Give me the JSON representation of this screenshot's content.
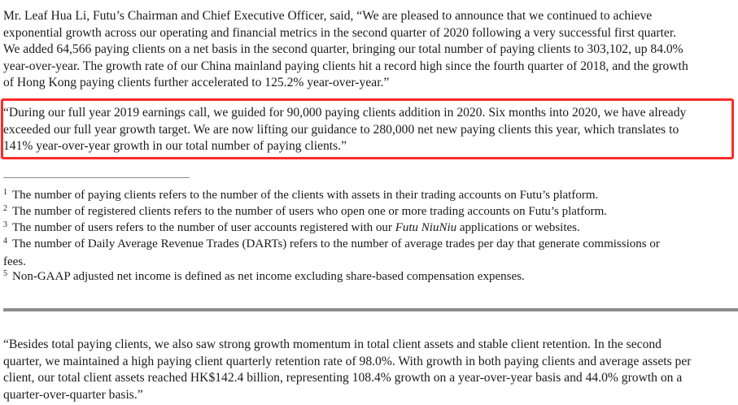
{
  "paragraph_1": {
    "lines": [
      "Mr. Leaf Hua Li, Futu’s Chairman and Chief Executive Officer, said, “We are pleased to announce that we continued to achieve",
      "exponential growth across our operating and financial metrics in the second quarter of 2020 following a very successful first quarter.",
      "We added 64,566 paying clients on a net basis in the second quarter, bringing our total number of paying clients to 303,102, up 84.0%",
      "year-over-year. The growth rate of our China mainland paying clients hit a record high since the fourth quarter of 2018, and the growth",
      "of Hong Kong paying clients further accelerated to 125.2% year-over-year.”"
    ]
  },
  "paragraph_2_highlighted": {
    "lines": [
      "“During our full year 2019 earnings call, we guided for 90,000 paying clients addition in 2020. Six months into 2020, we have already",
      "exceeded our full year growth target. We are now lifting our guidance to 280,000 net new paying clients this year, which translates to",
      "141% year-over-year growth in our total number of paying clients.”"
    ],
    "highlight_color": "#ff2a2a"
  },
  "footnotes": [
    {
      "marker": "1",
      "text": "The number of paying clients refers to the number of the clients with assets in their trading accounts on Futu’s platform."
    },
    {
      "marker": "2",
      "text": "The number of registered clients refers to the number of users who open one or more trading accounts on Futu’s platform."
    },
    {
      "marker": "3",
      "text_before": "The number of users refers to the number of user accounts registered with our ",
      "text_italic": "Futu NiuNiu",
      "text_after": " applications or websites."
    },
    {
      "marker": "4",
      "text": "The number of Daily Average Revenue Trades (DARTs) refers to the number of average trades per day that generate commissions or",
      "continuation": "fees."
    },
    {
      "marker": "5",
      "text": "Non-GAAP adjusted net income is defined as net income excluding share-based compensation expenses."
    }
  ],
  "paragraph_3": {
    "lines": [
      "“Besides total paying clients, we also saw strong growth momentum in total client assets and stable client retention. In the second",
      "quarter, we maintained a high paying client quarterly retention rate of 98.0%. With growth in both paying clients and average assets per",
      "client, our total client assets reached HK$142.4 billion, representing 108.4% growth on a year-over-year basis and 44.0% growth on a",
      "quarter-over-quarter basis.”"
    ]
  }
}
